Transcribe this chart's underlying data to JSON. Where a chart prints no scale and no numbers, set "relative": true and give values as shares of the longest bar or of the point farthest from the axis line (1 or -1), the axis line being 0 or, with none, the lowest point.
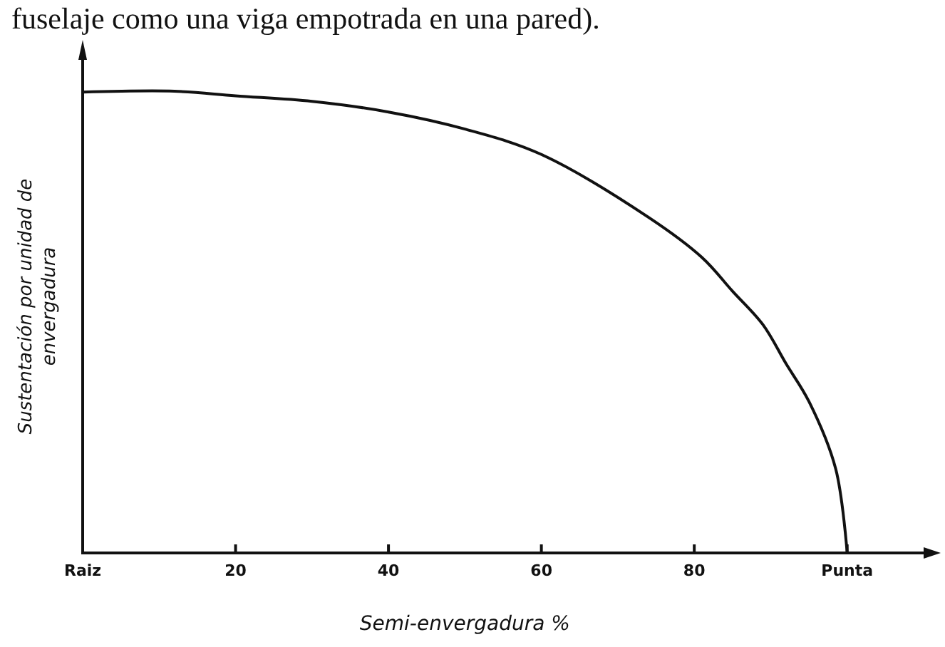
{
  "chart_data": {
    "type": "line",
    "relative": true,
    "xlabel": "Semi-envergadura %",
    "ylabel": "Sustentación por unidad de\nenvergadura",
    "annotations": [
      "fuselaje como una viga empotrada en una pared)."
    ],
    "xlim": [
      0,
      110
    ],
    "xticks": [
      {
        "value": 0,
        "label": "Raiz"
      },
      20,
      40,
      60,
      80,
      {
        "value": 100,
        "label": "Punta"
      }
    ],
    "grid": false,
    "marker": "none",
    "line_style": "solid",
    "series": [
      {
        "color": "#111111",
        "x": [
          0,
          12,
          20,
          30,
          40,
          50,
          60,
          74,
          81,
          85,
          89,
          92,
          95,
          98.5,
          100
        ],
        "values": [
          0.998,
          1,
          0.99,
          0.978,
          0.955,
          0.918,
          0.863,
          0.727,
          0.64,
          0.567,
          0.494,
          0.41,
          0.328,
          0.182,
          0
        ]
      }
    ]
  }
}
